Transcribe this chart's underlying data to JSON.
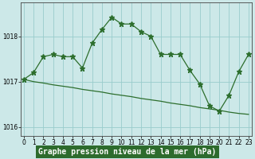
{
  "line1_x": [
    0,
    1,
    2,
    3,
    4,
    5,
    6,
    7,
    8,
    9,
    10,
    11,
    12,
    13,
    14,
    15,
    16,
    17,
    18,
    19,
    20,
    21,
    22,
    23
  ],
  "line1_y": [
    1017.05,
    1017.2,
    1017.55,
    1017.6,
    1017.55,
    1017.55,
    1017.3,
    1017.85,
    1018.15,
    1018.42,
    1018.27,
    1018.27,
    1018.1,
    1018.0,
    1017.6,
    1017.6,
    1017.6,
    1017.25,
    1016.95,
    1016.47,
    1016.35,
    1016.7,
    1017.22,
    1017.6
  ],
  "line2_x": [
    0,
    1,
    2,
    3,
    4,
    5,
    6,
    7,
    8,
    9,
    10,
    11,
    12,
    13,
    14,
    15,
    16,
    17,
    18,
    19,
    20,
    21,
    22,
    23
  ],
  "line2_y": [
    1017.05,
    1017.0,
    1016.97,
    1016.93,
    1016.9,
    1016.87,
    1016.83,
    1016.8,
    1016.77,
    1016.73,
    1016.7,
    1016.67,
    1016.63,
    1016.6,
    1016.57,
    1016.53,
    1016.5,
    1016.47,
    1016.43,
    1016.4,
    1016.37,
    1016.33,
    1016.3,
    1016.28
  ],
  "line_color": "#2d6e2d",
  "bg_color": "#cce8e8",
  "grid_color": "#99cccc",
  "ylim": [
    1015.8,
    1018.75
  ],
  "yticks": [
    1016,
    1017,
    1018
  ],
  "xticks": [
    0,
    1,
    2,
    3,
    4,
    5,
    6,
    7,
    8,
    9,
    10,
    11,
    12,
    13,
    14,
    15,
    16,
    17,
    18,
    19,
    20,
    21,
    22,
    23
  ],
  "marker": "*",
  "marker1_size": 4.5,
  "marker2_size": 2.5,
  "linewidth": 0.9,
  "xlabel": "Graphe pression niveau de la mer (hPa)",
  "xlabel_fontsize": 7.0,
  "tick_fontsize": 5.5,
  "xlabel_bg": "#2d6b2d",
  "xlabel_color": "#ffffff",
  "xlim": [
    -0.3,
    23.3
  ]
}
